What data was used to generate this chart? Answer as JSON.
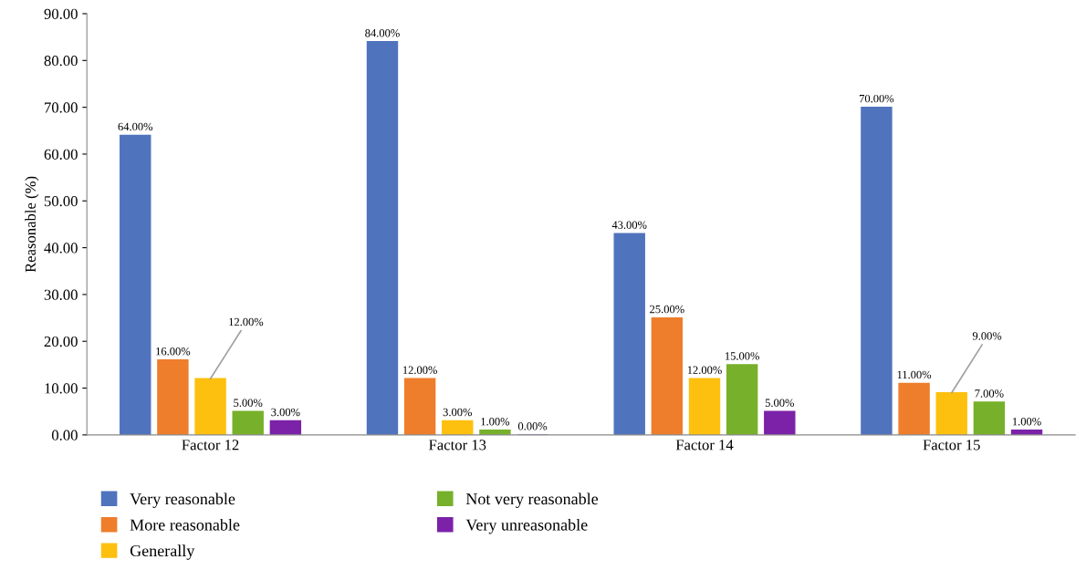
{
  "chart_data": {
    "type": "bar",
    "ylabel": "Reasonable (%)",
    "categories": [
      "Factor 12",
      "Factor 13",
      "Factor 14",
      "Factor 15"
    ],
    "series": [
      {
        "name": "Very reasonable",
        "color": "#5073bd",
        "values": [
          64,
          84,
          43,
          70
        ],
        "value_labels": [
          "64.00%",
          "84.00%",
          "43.00%",
          "70.00%"
        ]
      },
      {
        "name": "More reasonable",
        "color": "#ee7d2c",
        "values": [
          16,
          12,
          25,
          11
        ],
        "value_labels": [
          "16.00%",
          "12.00%",
          "25.00%",
          "11.00%"
        ]
      },
      {
        "name": "Generally",
        "color": "#fdc00f",
        "values": [
          12,
          3,
          12,
          9
        ],
        "value_labels": [
          "12.00%",
          "3.00%",
          "12.00%",
          "9.00%"
        ]
      },
      {
        "name": "Not very reasonable",
        "color": "#77b02a",
        "values": [
          5,
          1,
          15,
          7
        ],
        "value_labels": [
          "5.00%",
          "1.00%",
          "15.00%",
          "7.00%"
        ]
      },
      {
        "name": "Very unreasonable",
        "color": "#7b22a8",
        "values": [
          3,
          0,
          5,
          1
        ],
        "value_labels": [
          "3.00%",
          "0.00%",
          "5.00%",
          "1.00%"
        ]
      }
    ],
    "ylim": [
      0,
      90
    ],
    "yticks": [
      {
        "value": 0,
        "label": "0.00"
      },
      {
        "value": 10,
        "label": "10.00"
      },
      {
        "value": 20,
        "label": "20.00"
      },
      {
        "value": 30,
        "label": "30.00"
      },
      {
        "value": 40,
        "label": "40.00"
      },
      {
        "value": 50,
        "label": "50.00"
      },
      {
        "value": 60,
        "label": "60.00"
      },
      {
        "value": 70,
        "label": "70.00"
      },
      {
        "value": 80,
        "label": "80.00"
      },
      {
        "value": 90,
        "label": "90.00"
      }
    ],
    "grid": false,
    "legend": "bottom left"
  }
}
